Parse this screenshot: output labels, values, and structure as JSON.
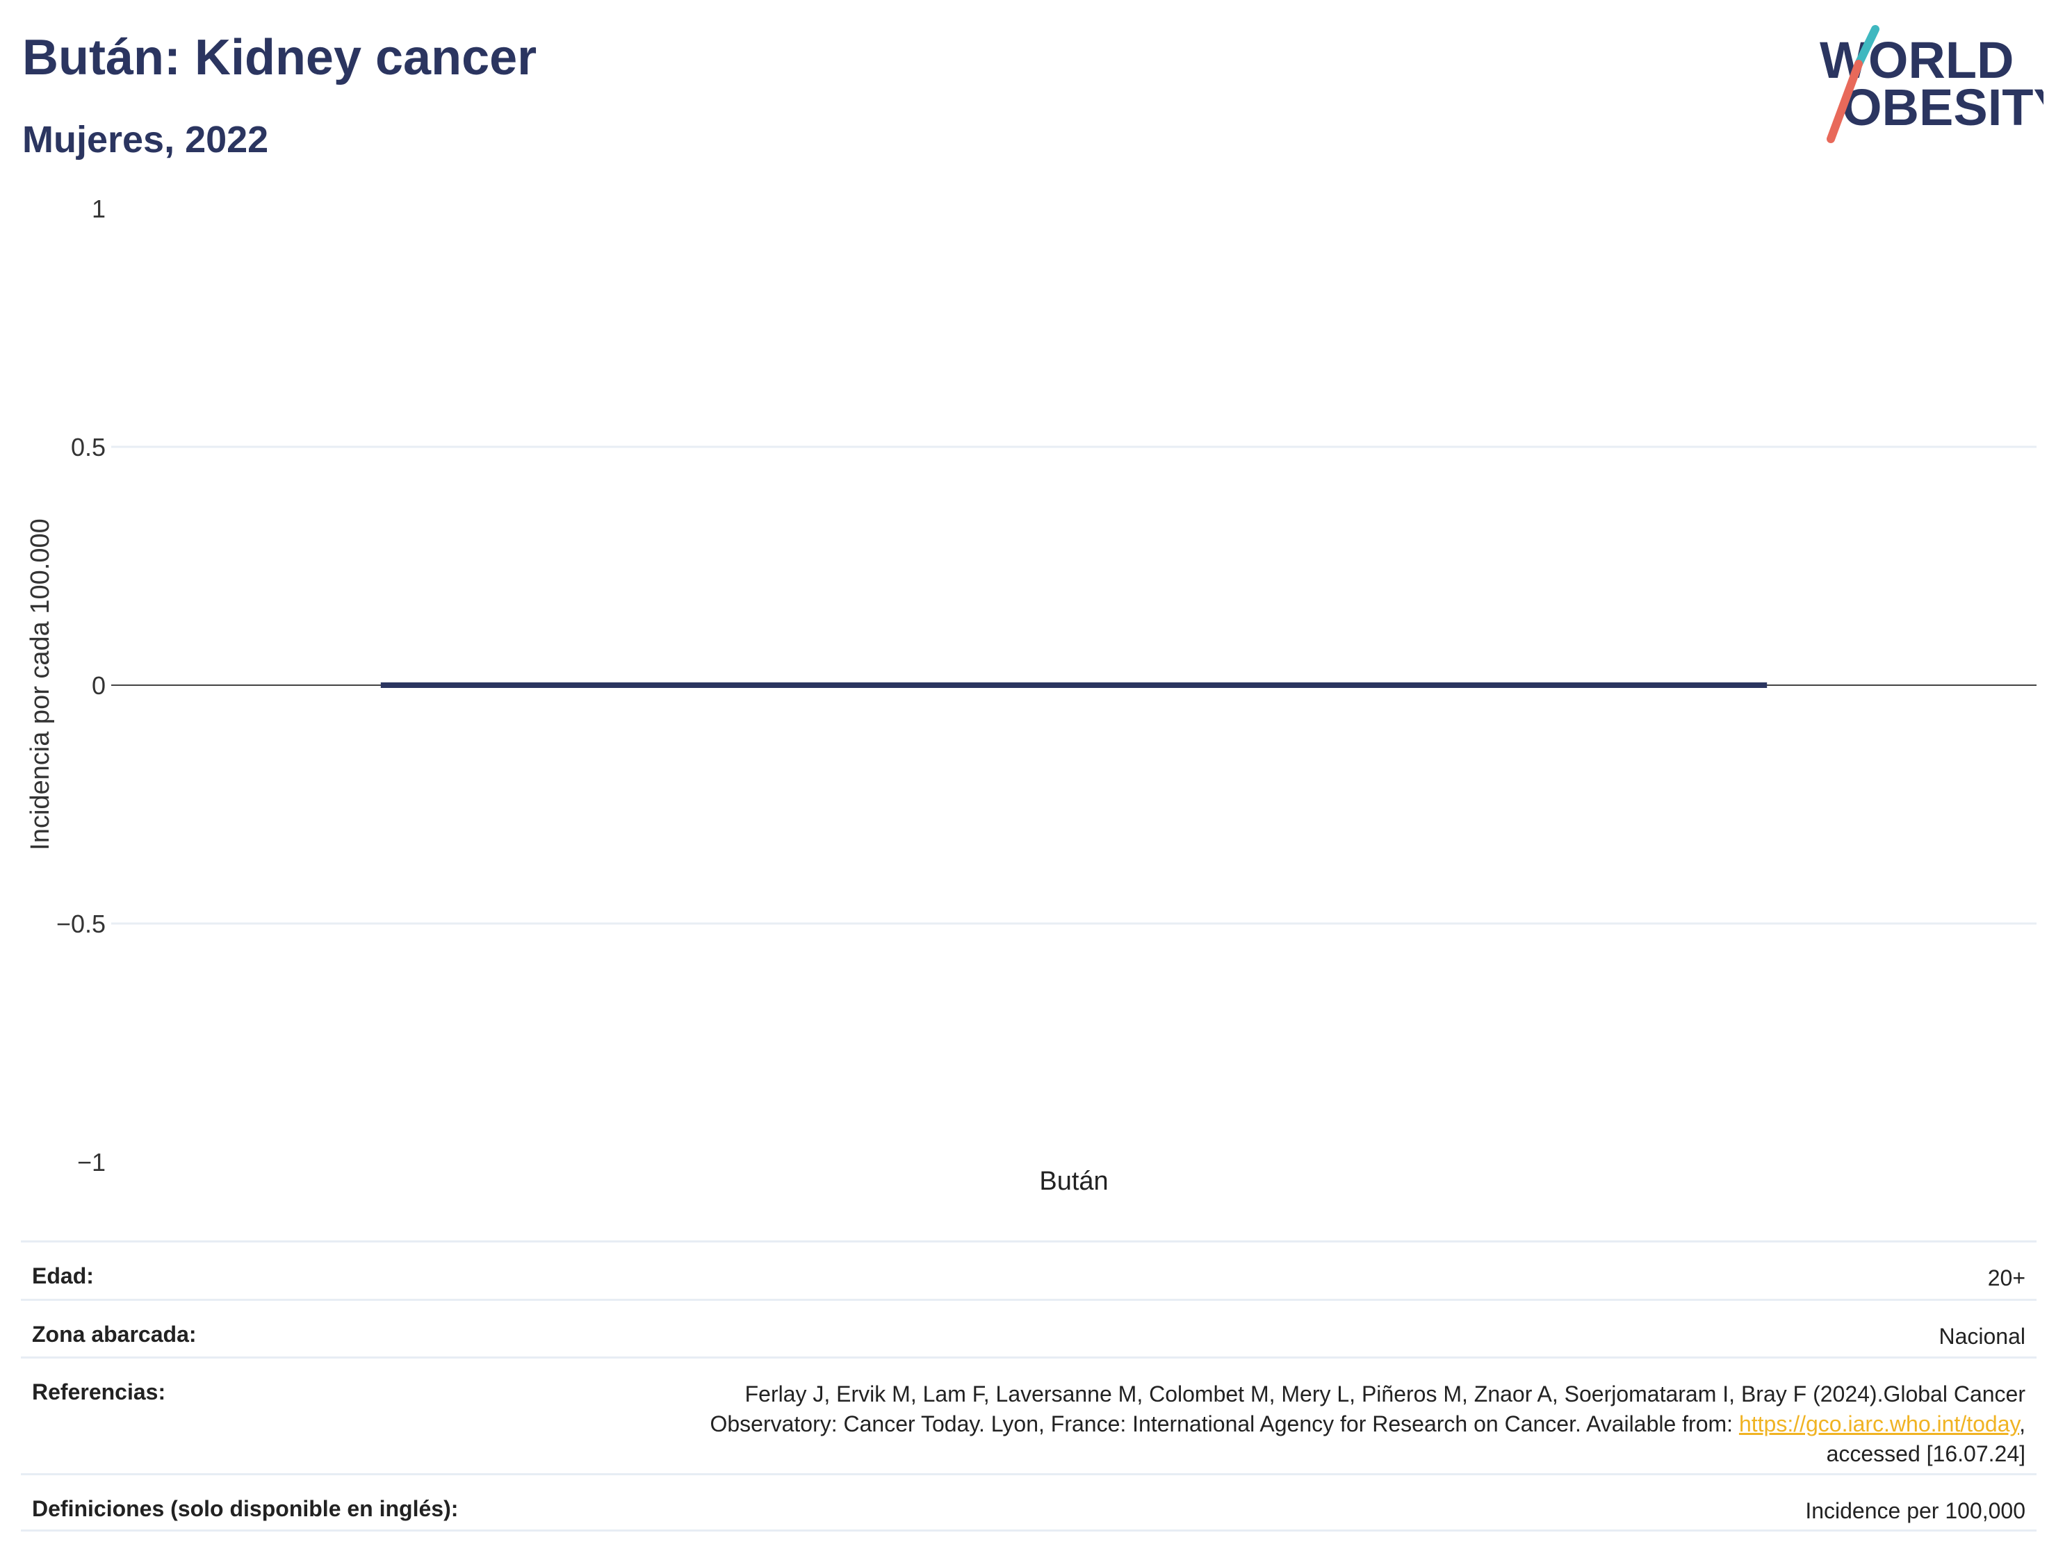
{
  "header": {
    "title": "Bután: Kidney cancer",
    "subtitle": "Mujeres, 2022"
  },
  "logo": {
    "line1": "WORLD",
    "line2": "OBESITY",
    "colors": {
      "text": "#2b3560",
      "slash_top": "#3fb8c0",
      "slash_bottom": "#e8695a"
    }
  },
  "chart_data": {
    "type": "bar",
    "categories": [
      "Bután"
    ],
    "values": [
      0
    ],
    "ylabel": "Incidencia por cada 100.000",
    "ylim": [
      -1,
      1
    ],
    "yticks": [
      1,
      0.5,
      0,
      -0.5,
      -1
    ],
    "ytick_labels": [
      "1",
      "0.5",
      "0",
      "−0.5",
      "−1"
    ],
    "grid": true,
    "bar_color": "#2b3560"
  },
  "meta": {
    "age_label": "Edad:",
    "age_value": "20+",
    "zone_label": "Zona abarcada:",
    "zone_value": "Nacional",
    "refs_label": "Referencias:",
    "refs_line1": "Ferlay J, Ervik M, Lam F, Laversanne M, Colombet M, Mery L, Piñeros M, Znaor A, Soerjomataram I, Bray F (2024).Global Cancer",
    "refs_line2_pre": "Observatory: Cancer Today. Lyon, France: International Agency for Research on Cancer. Available from: ",
    "refs_link": "https://gco.iarc.who.int/today",
    "refs_line2_post": ",",
    "refs_line3": "accessed [16.07.24]",
    "defs_label": "Definiciones (solo disponible en inglés):",
    "defs_value": "Incidence per 100,000"
  }
}
